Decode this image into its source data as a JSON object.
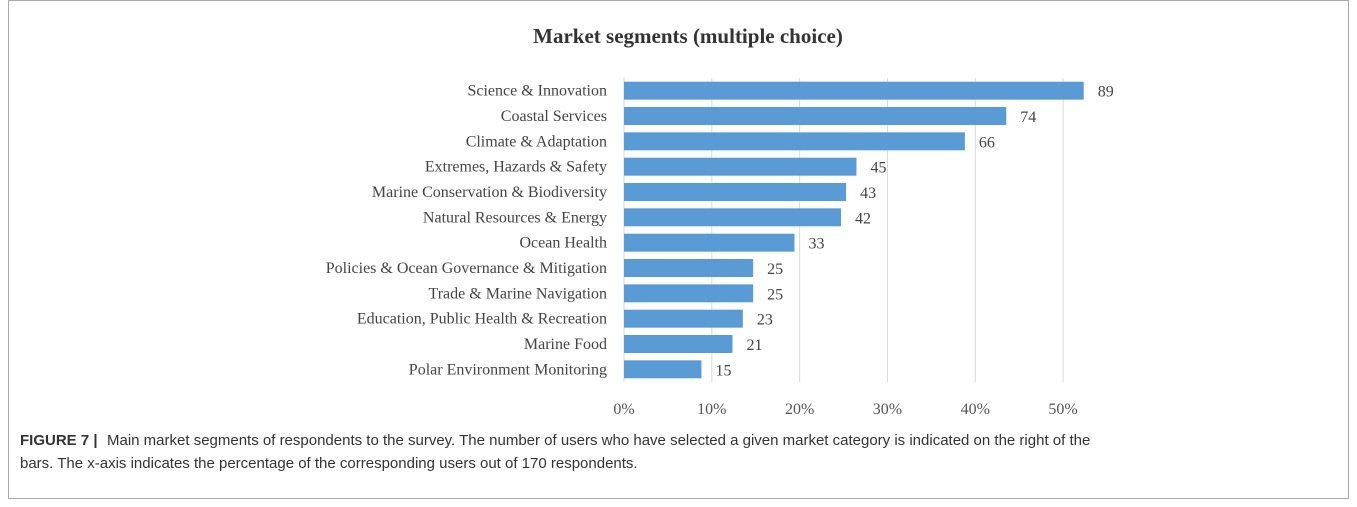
{
  "chart_data": {
    "type": "hbar",
    "title": "Market segments (multiple choice)",
    "categories": [
      "Science & Innovation",
      "Coastal Services",
      "Climate & Adaptation",
      "Extremes, Hazards & Safety",
      "Marine Conservation & Biodiversity",
      "Natural Resources & Energy",
      "Ocean Health",
      "Policies & Ocean Governance & Mitigation",
      "Trade & Marine Navigation",
      "Education, Public Health & Recreation",
      "Marine Food",
      "Polar Environment Monitoring"
    ],
    "values": [
      52.35,
      43.53,
      38.82,
      26.47,
      25.29,
      24.71,
      19.41,
      14.71,
      14.71,
      13.53,
      12.35,
      8.82
    ],
    "value_labels": [
      "89",
      "74",
      "66",
      "45",
      "43",
      "42",
      "33",
      "25",
      "25",
      "23",
      "21",
      "15"
    ],
    "color": "#5b9bd5",
    "xlim": [
      0,
      55
    ],
    "xticks": [
      {
        "value": 0,
        "label": "0%"
      },
      {
        "value": 10,
        "label": "10%"
      },
      {
        "value": 20,
        "label": "20%"
      },
      {
        "value": 30,
        "label": "30%"
      },
      {
        "value": 40,
        "label": "40%"
      },
      {
        "value": 50,
        "label": "50%"
      }
    ],
    "grid": true
  },
  "figure_label": "FIGURE 7 |",
  "caption_lines": [
    "Main market segments of respondents to the survey. The number of users who have selected a given market category is indicated on the right of the",
    "bars. The x-axis indicates the percentage of the corresponding users out of 170 respondents."
  ]
}
